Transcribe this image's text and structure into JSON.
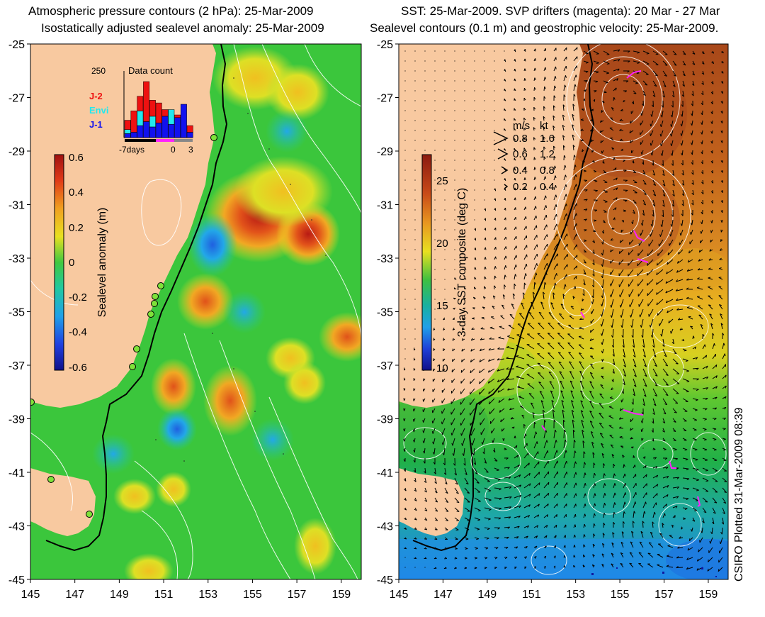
{
  "left_panel": {
    "title_line1": "Atmospheric pressure contours (2 hPa): 25-Mar-2009",
    "title_line2": "Isostatically adjusted sealevel anomaly: 25-Mar-2009",
    "colorbar": {
      "label": "Sealevel anomaly (m)",
      "ticks": [
        "0.6",
        "0.4",
        "0.2",
        "0",
        "-0.2",
        "-0.4",
        "-0.6"
      ]
    },
    "inset": {
      "title": "Data count",
      "ymax": "250",
      "legend": [
        "J-2",
        "Envi",
        "J-1"
      ],
      "legend_colors": [
        "#ee1111",
        "#22e8ee",
        "#1111ee"
      ],
      "xlabels": [
        "-7days",
        "0",
        "3"
      ],
      "bars_j1": [
        15,
        20,
        45,
        60,
        40,
        55,
        80,
        50,
        75,
        125,
        20
      ],
      "bars_envi": [
        15,
        0,
        55,
        0,
        40,
        0,
        0,
        55,
        0,
        0,
        0
      ],
      "bars_j2": [
        35,
        80,
        55,
        150,
        60,
        75,
        25,
        0,
        10,
        0,
        25
      ]
    }
  },
  "right_panel": {
    "title_line1": "SST: 25-Mar-2009. SVP drifters (magenta): 20 Mar - 27 Mar",
    "title_line2": "Sealevel contours (0.1 m) and geostrophic velocity: 25-Mar-2009.",
    "colorbar": {
      "label": "3-day SST composite (deg C)",
      "ticks": [
        "25",
        "20",
        "15",
        "10"
      ]
    },
    "velocity_legend": {
      "header_ms": "m/s",
      "header_kt": "kt",
      "rows": [
        {
          "ms": "0.8",
          "kt": "1.6"
        },
        {
          "ms": "0.6",
          "kt": "1.2"
        },
        {
          "ms": "0.4",
          "kt": "0.8"
        },
        {
          "ms": "0.2",
          "kt": "0.4"
        }
      ]
    }
  },
  "axes": {
    "lat_ticks": [
      "-25",
      "-27",
      "-29",
      "-31",
      "-33",
      "-35",
      "-37",
      "-39",
      "-41",
      "-43",
      "-45"
    ],
    "lon_ticks": [
      "145",
      "147",
      "149",
      "151",
      "153",
      "155",
      "157",
      "159"
    ]
  },
  "credit": "CSIRO Plotted 31-Mar-2009 08:39",
  "colors": {
    "land": "#f8c9a0",
    "sla_base": "#37c43a",
    "sst_warm": "#c8641e",
    "sst_mid": "#e8b820",
    "sst_cool": "#2a9ae0",
    "drifter": "#ff22ff"
  }
}
